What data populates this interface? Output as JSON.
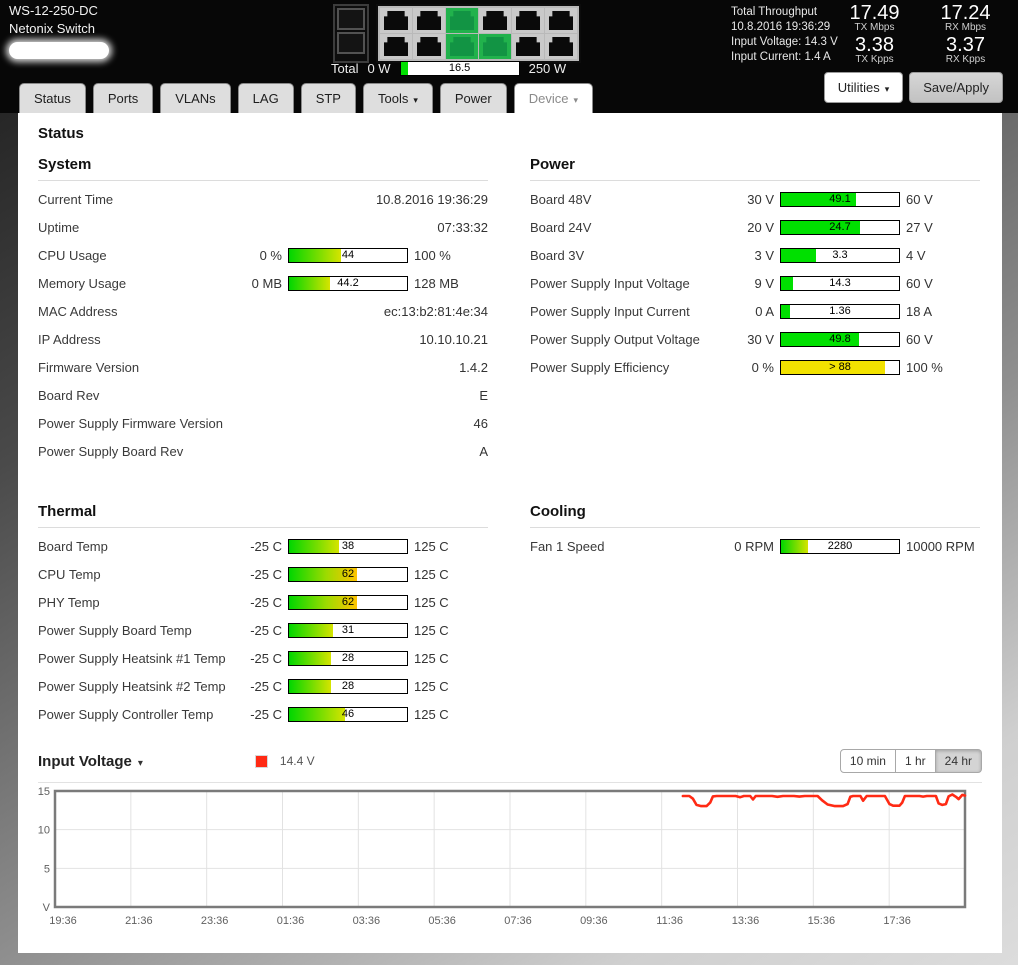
{
  "header": {
    "model": "WS-12-250-DC",
    "product": "Netonix Switch",
    "ports": {
      "sfp": [
        "off",
        "off"
      ],
      "grid": [
        [
          "off",
          "off",
          "on",
          "off",
          "off",
          "off"
        ],
        [
          "off",
          "off",
          "on",
          "on",
          "off",
          "off"
        ]
      ]
    },
    "power_meter": {
      "label": "Total",
      "min": "0 W",
      "value": "16.5",
      "percent": 6.6,
      "max": "250 W"
    },
    "throughput": {
      "title": "Total Throughput",
      "timestamp": "10.8.2016 19:36:29",
      "input_voltage": "Input Voltage: 14.3 V",
      "input_current": "Input Current: 1.4 A",
      "stats": [
        {
          "value": "17.49",
          "unit": "TX Mbps"
        },
        {
          "value": "17.24",
          "unit": "RX Mbps"
        },
        {
          "value": "3.38",
          "unit": "TX Kpps"
        },
        {
          "value": "3.37",
          "unit": "RX Kpps"
        }
      ]
    }
  },
  "tabs": [
    {
      "label": "Status",
      "caret": false,
      "active": false
    },
    {
      "label": "Ports",
      "caret": false,
      "active": false
    },
    {
      "label": "VLANs",
      "caret": false,
      "active": false
    },
    {
      "label": "LAG",
      "caret": false,
      "active": false
    },
    {
      "label": "STP",
      "caret": false,
      "active": false
    },
    {
      "label": "Tools",
      "caret": true,
      "active": false
    },
    {
      "label": "Power",
      "caret": false,
      "active": false
    },
    {
      "label": "Device",
      "caret": true,
      "active": true
    }
  ],
  "toolbar": {
    "utilities_label": "Utilities",
    "save_label": "Save/Apply"
  },
  "page_title": "Status",
  "sections": [
    {
      "title": "System",
      "rows": [
        {
          "type": "text",
          "label": "Current Time",
          "value": "10.8.2016 19:36:29"
        },
        {
          "type": "text",
          "label": "Uptime",
          "value": "07:33:32"
        },
        {
          "type": "bar",
          "label": "CPU Usage",
          "min": "0 %",
          "max": "100 %",
          "value": "44",
          "percent": 44,
          "fill": "gradient"
        },
        {
          "type": "bar",
          "label": "Memory Usage",
          "min": "0 MB",
          "max": "128 MB",
          "value": "44.2",
          "percent": 34.5,
          "fill": "gradient"
        },
        {
          "type": "text",
          "label": "MAC Address",
          "value": "ec:13:b2:81:4e:34"
        },
        {
          "type": "text",
          "label": "IP Address",
          "value": "10.10.10.21"
        },
        {
          "type": "text",
          "label": "Firmware Version",
          "value": "1.4.2"
        },
        {
          "type": "text",
          "label": "Board Rev",
          "value": "E"
        },
        {
          "type": "text",
          "label": "Power Supply Firmware Version",
          "value": "46"
        },
        {
          "type": "text",
          "label": "Power Supply Board Rev",
          "value": "A"
        }
      ]
    },
    {
      "title": "Power",
      "rows": [
        {
          "type": "bar",
          "label": "Board 48V",
          "min": "30 V",
          "max": "60 V",
          "value": "49.1",
          "percent": 63.7,
          "fill": "green"
        },
        {
          "type": "bar",
          "label": "Board 24V",
          "min": "20 V",
          "max": "27 V",
          "value": "24.7",
          "percent": 67.1,
          "fill": "green"
        },
        {
          "type": "bar",
          "label": "Board 3V",
          "min": "3 V",
          "max": "4 V",
          "value": "3.3",
          "percent": 30,
          "fill": "green"
        },
        {
          "type": "bar",
          "label": "Power Supply Input Voltage",
          "min": "9 V",
          "max": "60 V",
          "value": "14.3",
          "percent": 10.4,
          "fill": "green"
        },
        {
          "type": "bar",
          "label": "Power Supply Input Current",
          "min": "0 A",
          "max": "18 A",
          "value": "1.36",
          "percent": 7.6,
          "fill": "green"
        },
        {
          "type": "bar",
          "label": "Power Supply Output Voltage",
          "min": "30 V",
          "max": "60 V",
          "value": "49.8",
          "percent": 66,
          "fill": "green"
        },
        {
          "type": "bar",
          "label": "Power Supply Efficiency",
          "min": "0 %",
          "max": "100 %",
          "value": "> 88",
          "percent": 88,
          "fill": "yellow"
        }
      ]
    },
    {
      "title": "Thermal",
      "rows": [
        {
          "type": "bar",
          "label": "Board Temp",
          "min": "-25 C",
          "max": "125 C",
          "value": "38",
          "percent": 42,
          "fill": "gradient"
        },
        {
          "type": "bar",
          "label": "CPU Temp",
          "min": "-25 C",
          "max": "125 C",
          "value": "62",
          "percent": 58,
          "fill": "gradient-hot"
        },
        {
          "type": "bar",
          "label": "PHY Temp",
          "min": "-25 C",
          "max": "125 C",
          "value": "62",
          "percent": 58,
          "fill": "gradient-hot"
        },
        {
          "type": "bar",
          "label": "Power Supply Board Temp",
          "min": "-25 C",
          "max": "125 C",
          "value": "31",
          "percent": 37.3,
          "fill": "gradient"
        },
        {
          "type": "bar",
          "label": "Power Supply Heatsink #1 Temp",
          "min": "-25 C",
          "max": "125 C",
          "value": "28",
          "percent": 35.3,
          "fill": "gradient"
        },
        {
          "type": "bar",
          "label": "Power Supply Heatsink #2 Temp",
          "min": "-25 C",
          "max": "125 C",
          "value": "28",
          "percent": 35.3,
          "fill": "gradient"
        },
        {
          "type": "bar",
          "label": "Power Supply Controller Temp",
          "min": "-25 C",
          "max": "125 C",
          "value": "46",
          "percent": 47.3,
          "fill": "gradient"
        }
      ]
    },
    {
      "title": "Cooling",
      "rows": [
        {
          "type": "bar",
          "label": "Fan 1 Speed",
          "min": "0 RPM",
          "max": "10000 RPM",
          "value": "2280",
          "percent": 22.8,
          "fill": "gradient"
        }
      ]
    }
  ],
  "chart_data": {
    "type": "line",
    "title": "Input Voltage",
    "legend": [
      {
        "label": "14.4 V",
        "color": "#ff2a14"
      }
    ],
    "range_buttons": [
      "10 min",
      "1 hr",
      "24 hr"
    ],
    "selected_range": "24 hr",
    "x_ticks": [
      "19:36",
      "21:36",
      "23:36",
      "01:36",
      "03:36",
      "05:36",
      "07:36",
      "09:36",
      "11:36",
      "13:36",
      "15:36",
      "17:36"
    ],
    "y_ticks": [
      15,
      10,
      5
    ],
    "y_unit": "V",
    "ylim": [
      0,
      15
    ],
    "grid": true,
    "series": [
      {
        "name": "Input Voltage",
        "color": "#ff2a14",
        "points": [
          [
            0.69,
            14.35
          ],
          [
            0.697,
            14.35
          ],
          [
            0.701,
            14.0
          ],
          [
            0.705,
            13.2
          ],
          [
            0.71,
            13.05
          ],
          [
            0.716,
            13.05
          ],
          [
            0.72,
            13.5
          ],
          [
            0.723,
            14.3
          ],
          [
            0.727,
            14.35
          ],
          [
            0.748,
            14.35
          ],
          [
            0.753,
            14.2
          ],
          [
            0.757,
            14.35
          ],
          [
            0.764,
            14.35
          ],
          [
            0.767,
            13.9
          ],
          [
            0.77,
            14.35
          ],
          [
            0.788,
            14.35
          ],
          [
            0.794,
            14.25
          ],
          [
            0.8,
            14.35
          ],
          [
            0.812,
            14.35
          ],
          [
            0.818,
            14.28
          ],
          [
            0.824,
            14.35
          ],
          [
            0.838,
            14.35
          ],
          [
            0.843,
            13.8
          ],
          [
            0.849,
            13.25
          ],
          [
            0.857,
            13.05
          ],
          [
            0.866,
            13.05
          ],
          [
            0.871,
            13.3
          ],
          [
            0.874,
            14.25
          ],
          [
            0.877,
            14.35
          ],
          [
            0.885,
            14.35
          ],
          [
            0.888,
            13.75
          ],
          [
            0.892,
            14.35
          ],
          [
            0.912,
            14.35
          ],
          [
            0.917,
            13.3
          ],
          [
            0.921,
            13.1
          ],
          [
            0.928,
            13.1
          ],
          [
            0.931,
            13.5
          ],
          [
            0.934,
            14.35
          ],
          [
            0.95,
            14.35
          ],
          [
            0.954,
            14.28
          ],
          [
            0.958,
            14.35
          ],
          [
            0.968,
            14.35
          ],
          [
            0.971,
            13.4
          ],
          [
            0.975,
            13.2
          ],
          [
            0.979,
            13.3
          ],
          [
            0.982,
            14.3
          ],
          [
            0.986,
            14.55
          ],
          [
            0.99,
            14.25
          ],
          [
            0.993,
            13.95
          ],
          [
            0.997,
            14.5
          ],
          [
            1.0,
            14.4
          ]
        ]
      }
    ]
  },
  "colors": {
    "bar_green": "#00e000",
    "bar_yellow": "#f2e200",
    "port_on_green": "#21b24c",
    "line_red": "#ff2a14",
    "header_bg": "#070707"
  }
}
